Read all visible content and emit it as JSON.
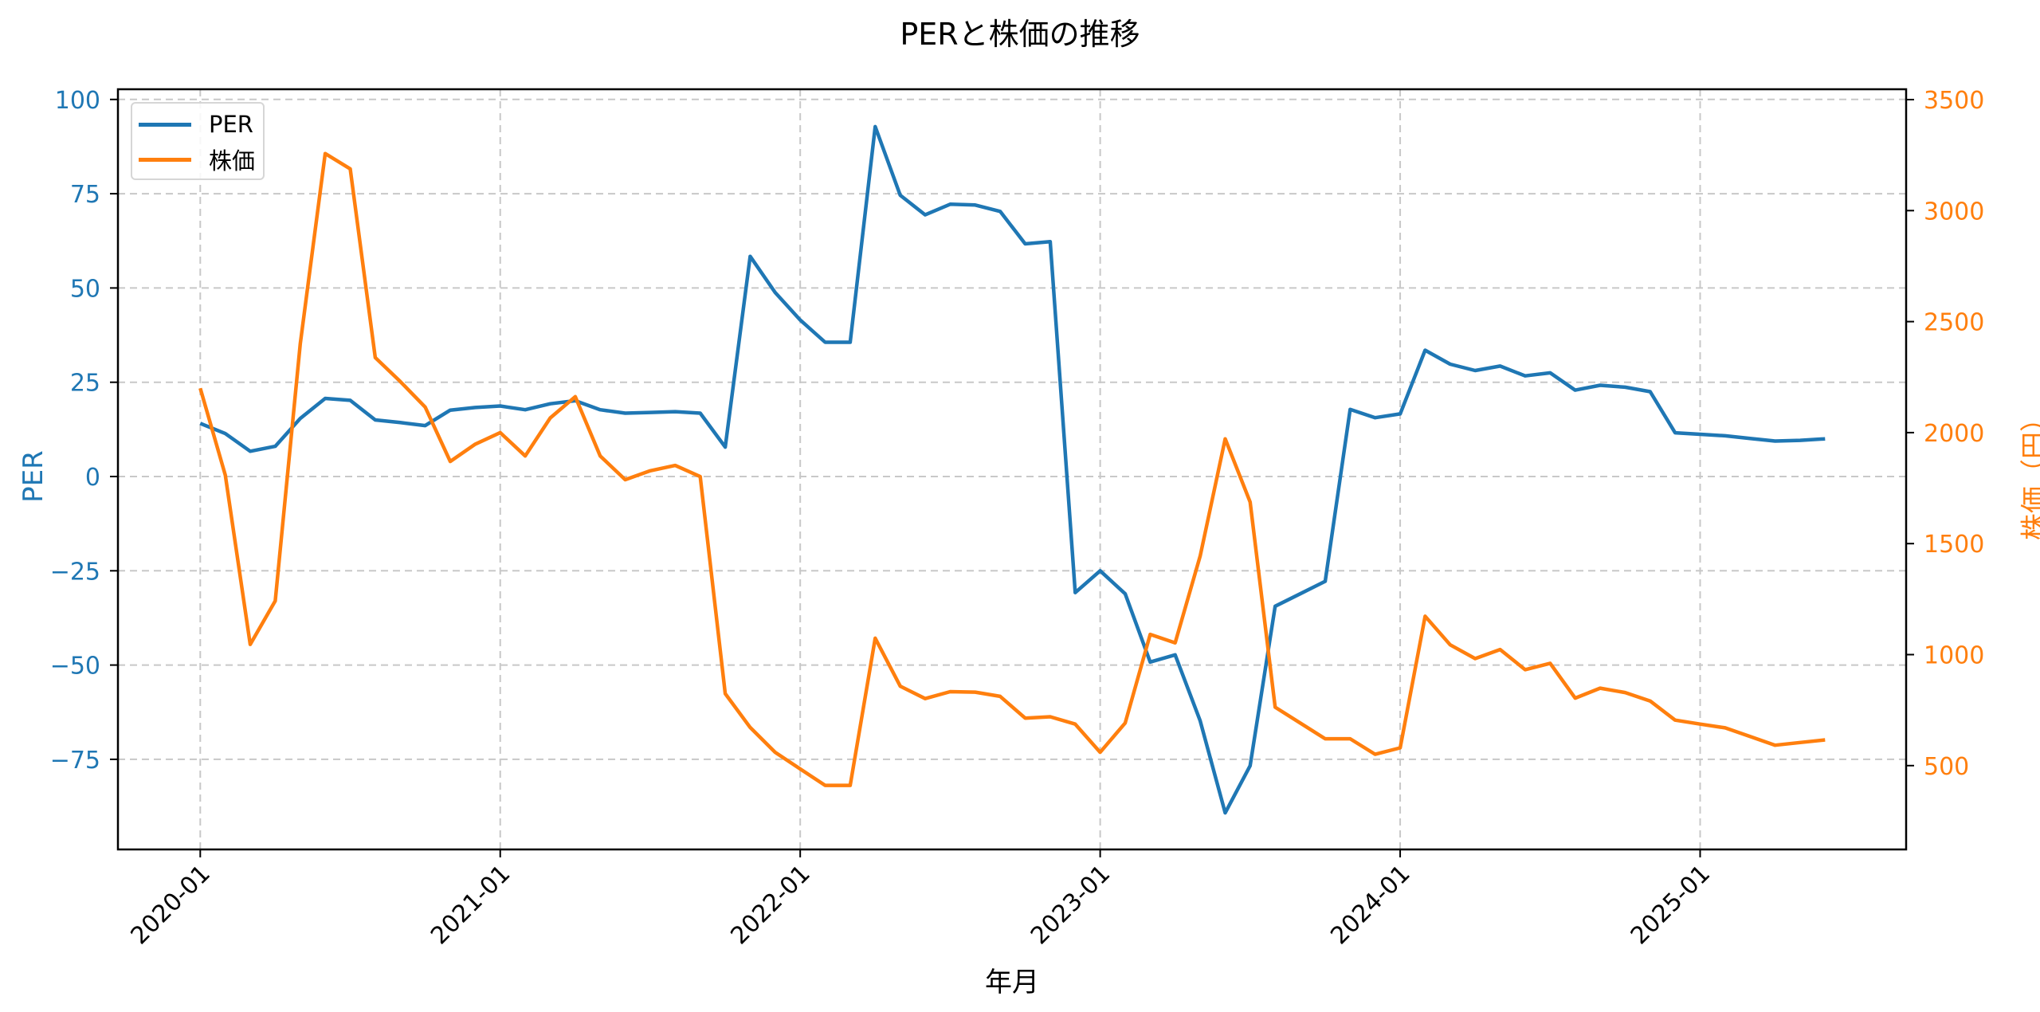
{
  "chart_data": {
    "type": "line",
    "title": "PERと株価の推移",
    "xlabel": "年月",
    "ylabel": "PER",
    "ylabel_right": "株価（円）",
    "x_tick_labels": [
      "2020-01",
      "2021-01",
      "2022-01",
      "2023-01",
      "2024-01",
      "2025-01"
    ],
    "y_ticks_left": [
      -75,
      -50,
      -25,
      0,
      25,
      50,
      75,
      100
    ],
    "y_ticks_right": [
      500,
      1000,
      1500,
      2000,
      2500,
      3000,
      3500
    ],
    "ylim": [
      -99,
      103
    ],
    "ylim_right": [
      122,
      3547
    ],
    "grid": true,
    "legend_position": "upper left",
    "x": [
      "2020-01",
      "2020-02",
      "2020-03",
      "2020-04",
      "2020-05",
      "2020-06",
      "2020-07",
      "2020-08",
      "2020-09",
      "2020-10",
      "2020-11",
      "2020-12",
      "2021-01",
      "2021-02",
      "2021-03",
      "2021-04",
      "2021-05",
      "2021-06",
      "2021-07",
      "2021-08",
      "2021-09",
      "2021-10",
      "2021-11",
      "2021-12",
      "2022-01",
      "2022-02",
      "2022-03",
      "2022-04",
      "2022-05",
      "2022-06",
      "2022-07",
      "2022-08",
      "2022-09",
      "2022-10",
      "2022-11",
      "2022-12",
      "2023-01",
      "2023-02",
      "2023-03",
      "2023-04",
      "2023-05",
      "2023-06",
      "2023-07",
      "2023-08",
      "2023-09",
      "2023-10",
      "2023-11",
      "2023-12",
      "2024-01",
      "2024-02",
      "2024-03",
      "2024-04",
      "2024-05",
      "2024-06",
      "2024-07",
      "2024-08",
      "2024-09",
      "2024-10",
      "2024-11",
      "2024-12",
      "2025-01",
      "2025-02",
      "2025-03",
      "2025-04",
      "2025-05",
      "2025-06"
    ],
    "series": [
      {
        "name": "PER",
        "axis": "left",
        "color": "#1f77b4",
        "values": [
          14.1,
          11.4,
          6.7,
          8.0,
          15.4,
          20.7,
          20.2,
          15.0,
          14.3,
          13.5,
          17.6,
          18.3,
          18.7,
          17.7,
          19.3,
          20.1,
          17.7,
          16.8,
          17.0,
          17.2,
          16.8,
          7.8,
          58.4,
          48.8,
          41.5,
          35.6,
          35.6,
          92.8,
          74.6,
          69.4,
          72.2,
          72.0,
          70.3,
          61.7,
          62.3,
          -30.8,
          -25.0,
          -31.1,
          -49.2,
          -47.3,
          -64.8,
          -89.2,
          -76.7,
          -34.4,
          -31.1,
          -27.8,
          17.8,
          15.6,
          16.6,
          33.5,
          29.8,
          28.1,
          29.3,
          26.7,
          27.5,
          22.9,
          24.2,
          23.7,
          22.5,
          11.6,
          11.2,
          10.8,
          10.1,
          9.4,
          9.6,
          10.0
        ]
      },
      {
        "name": "株価",
        "axis": "right",
        "color": "#ff7f0e",
        "values": [
          2200,
          1809,
          1046,
          1242,
          2400,
          3257,
          3188,
          2338,
          2230,
          2115,
          1870,
          1948,
          2000,
          1895,
          2066,
          2162,
          1895,
          1788,
          1828,
          1852,
          1802,
          824,
          672,
          560,
          485,
          411,
          411,
          1074,
          858,
          802,
          833,
          831,
          812,
          714,
          720,
          687,
          560,
          692,
          1091,
          1053,
          1444,
          1972,
          1687,
          763,
          692,
          621,
          621,
          551,
          580,
          1173,
          1044,
          982,
          1023,
          932,
          961,
          804,
          849,
          829,
          791,
          705,
          687,
          670,
          631,
          592,
          604,
          616
        ]
      }
    ]
  },
  "legend": {
    "items": [
      {
        "label": "PER",
        "color": "#1f77b4"
      },
      {
        "label": "株価",
        "color": "#ff7f0e"
      }
    ]
  }
}
